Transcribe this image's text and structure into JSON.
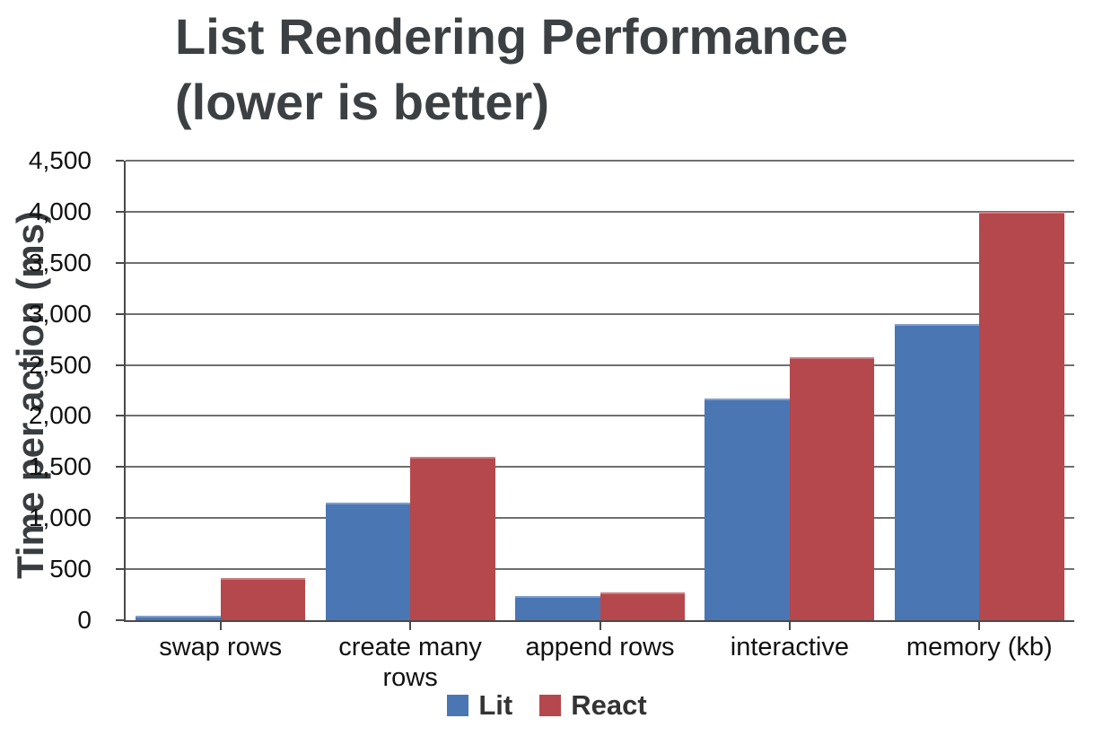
{
  "chart_data": {
    "type": "bar",
    "title": "List Rendering Performance (lower is better)",
    "title_lines": [
      "List Rendering Performance",
      "(lower is better)"
    ],
    "xlabel": "",
    "ylabel": "Time per action (ms)",
    "categories": [
      "swap rows",
      "create many rows",
      "append rows",
      "interactive",
      "memory (kb)"
    ],
    "series": [
      {
        "name": "Lit",
        "color": "#4A76B4",
        "values": [
          40,
          1150,
          240,
          2175,
          2900
        ]
      },
      {
        "name": "React",
        "color": "#B4484C",
        "values": [
          410,
          1600,
          275,
          2575,
          4000
        ]
      }
    ],
    "ylim": [
      0,
      4500
    ],
    "ytick_step": 500,
    "ytick_labels": [
      "0",
      "500",
      "1,000",
      "1,500",
      "2,000",
      "2,500",
      "3,000",
      "3,500",
      "4,000",
      "4,500"
    ],
    "grid": true,
    "legend_position": "bottom-center",
    "style": {
      "title_color": "#3d4043",
      "axis_color": "#4a4a4a",
      "gridline_color": "#6f6f6f",
      "tick_label_color": "#111111",
      "legend_text_color": "#333333",
      "background": "#ffffff"
    }
  }
}
